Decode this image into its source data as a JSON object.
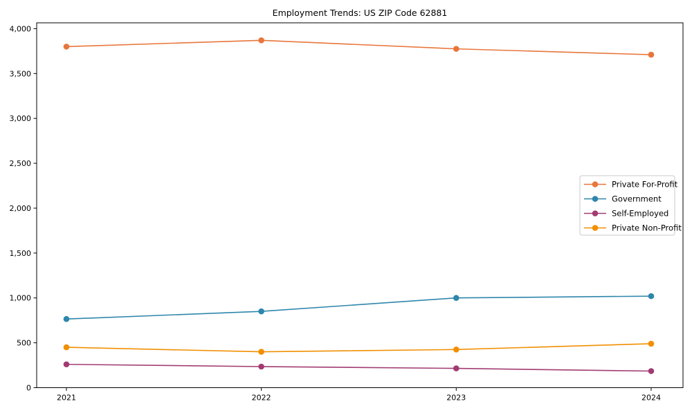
{
  "page": {
    "background_color": "#ffffff"
  },
  "chart_data": {
    "type": "line",
    "title": "Employment Trends: US ZIP Code 62881",
    "xlabel": "",
    "ylabel": "",
    "x": [
      2021,
      2022,
      2023,
      2024
    ],
    "x_tick_labels": [
      "2021",
      "2022",
      "2023",
      "2024"
    ],
    "series": [
      {
        "name": "Private For-Profit",
        "color": "#e8763c",
        "values": [
          3800,
          3870,
          3775,
          3710
        ]
      },
      {
        "name": "Government",
        "color": "#2e86ab",
        "values": [
          765,
          850,
          1000,
          1020
        ]
      },
      {
        "name": "Self-Employed",
        "color": "#a23b72",
        "values": [
          260,
          235,
          215,
          185
        ]
      },
      {
        "name": "Private Non-Profit",
        "color": "#f18f01",
        "values": [
          450,
          400,
          425,
          490
        ]
      }
    ],
    "ylim": [
      0,
      4065
    ],
    "yticks": [
      0,
      500,
      1000,
      1500,
      2000,
      2500,
      3000,
      3500,
      4000
    ],
    "ytick_labels": [
      "0",
      "500",
      "1,000",
      "1,500",
      "2,000",
      "2,500",
      "3,000",
      "3,500",
      "4,000"
    ],
    "grid": false,
    "legend_position": "right-center",
    "marker": "circle",
    "axis_color": "#000000",
    "legend_border_color": "#c9c9c9"
  }
}
